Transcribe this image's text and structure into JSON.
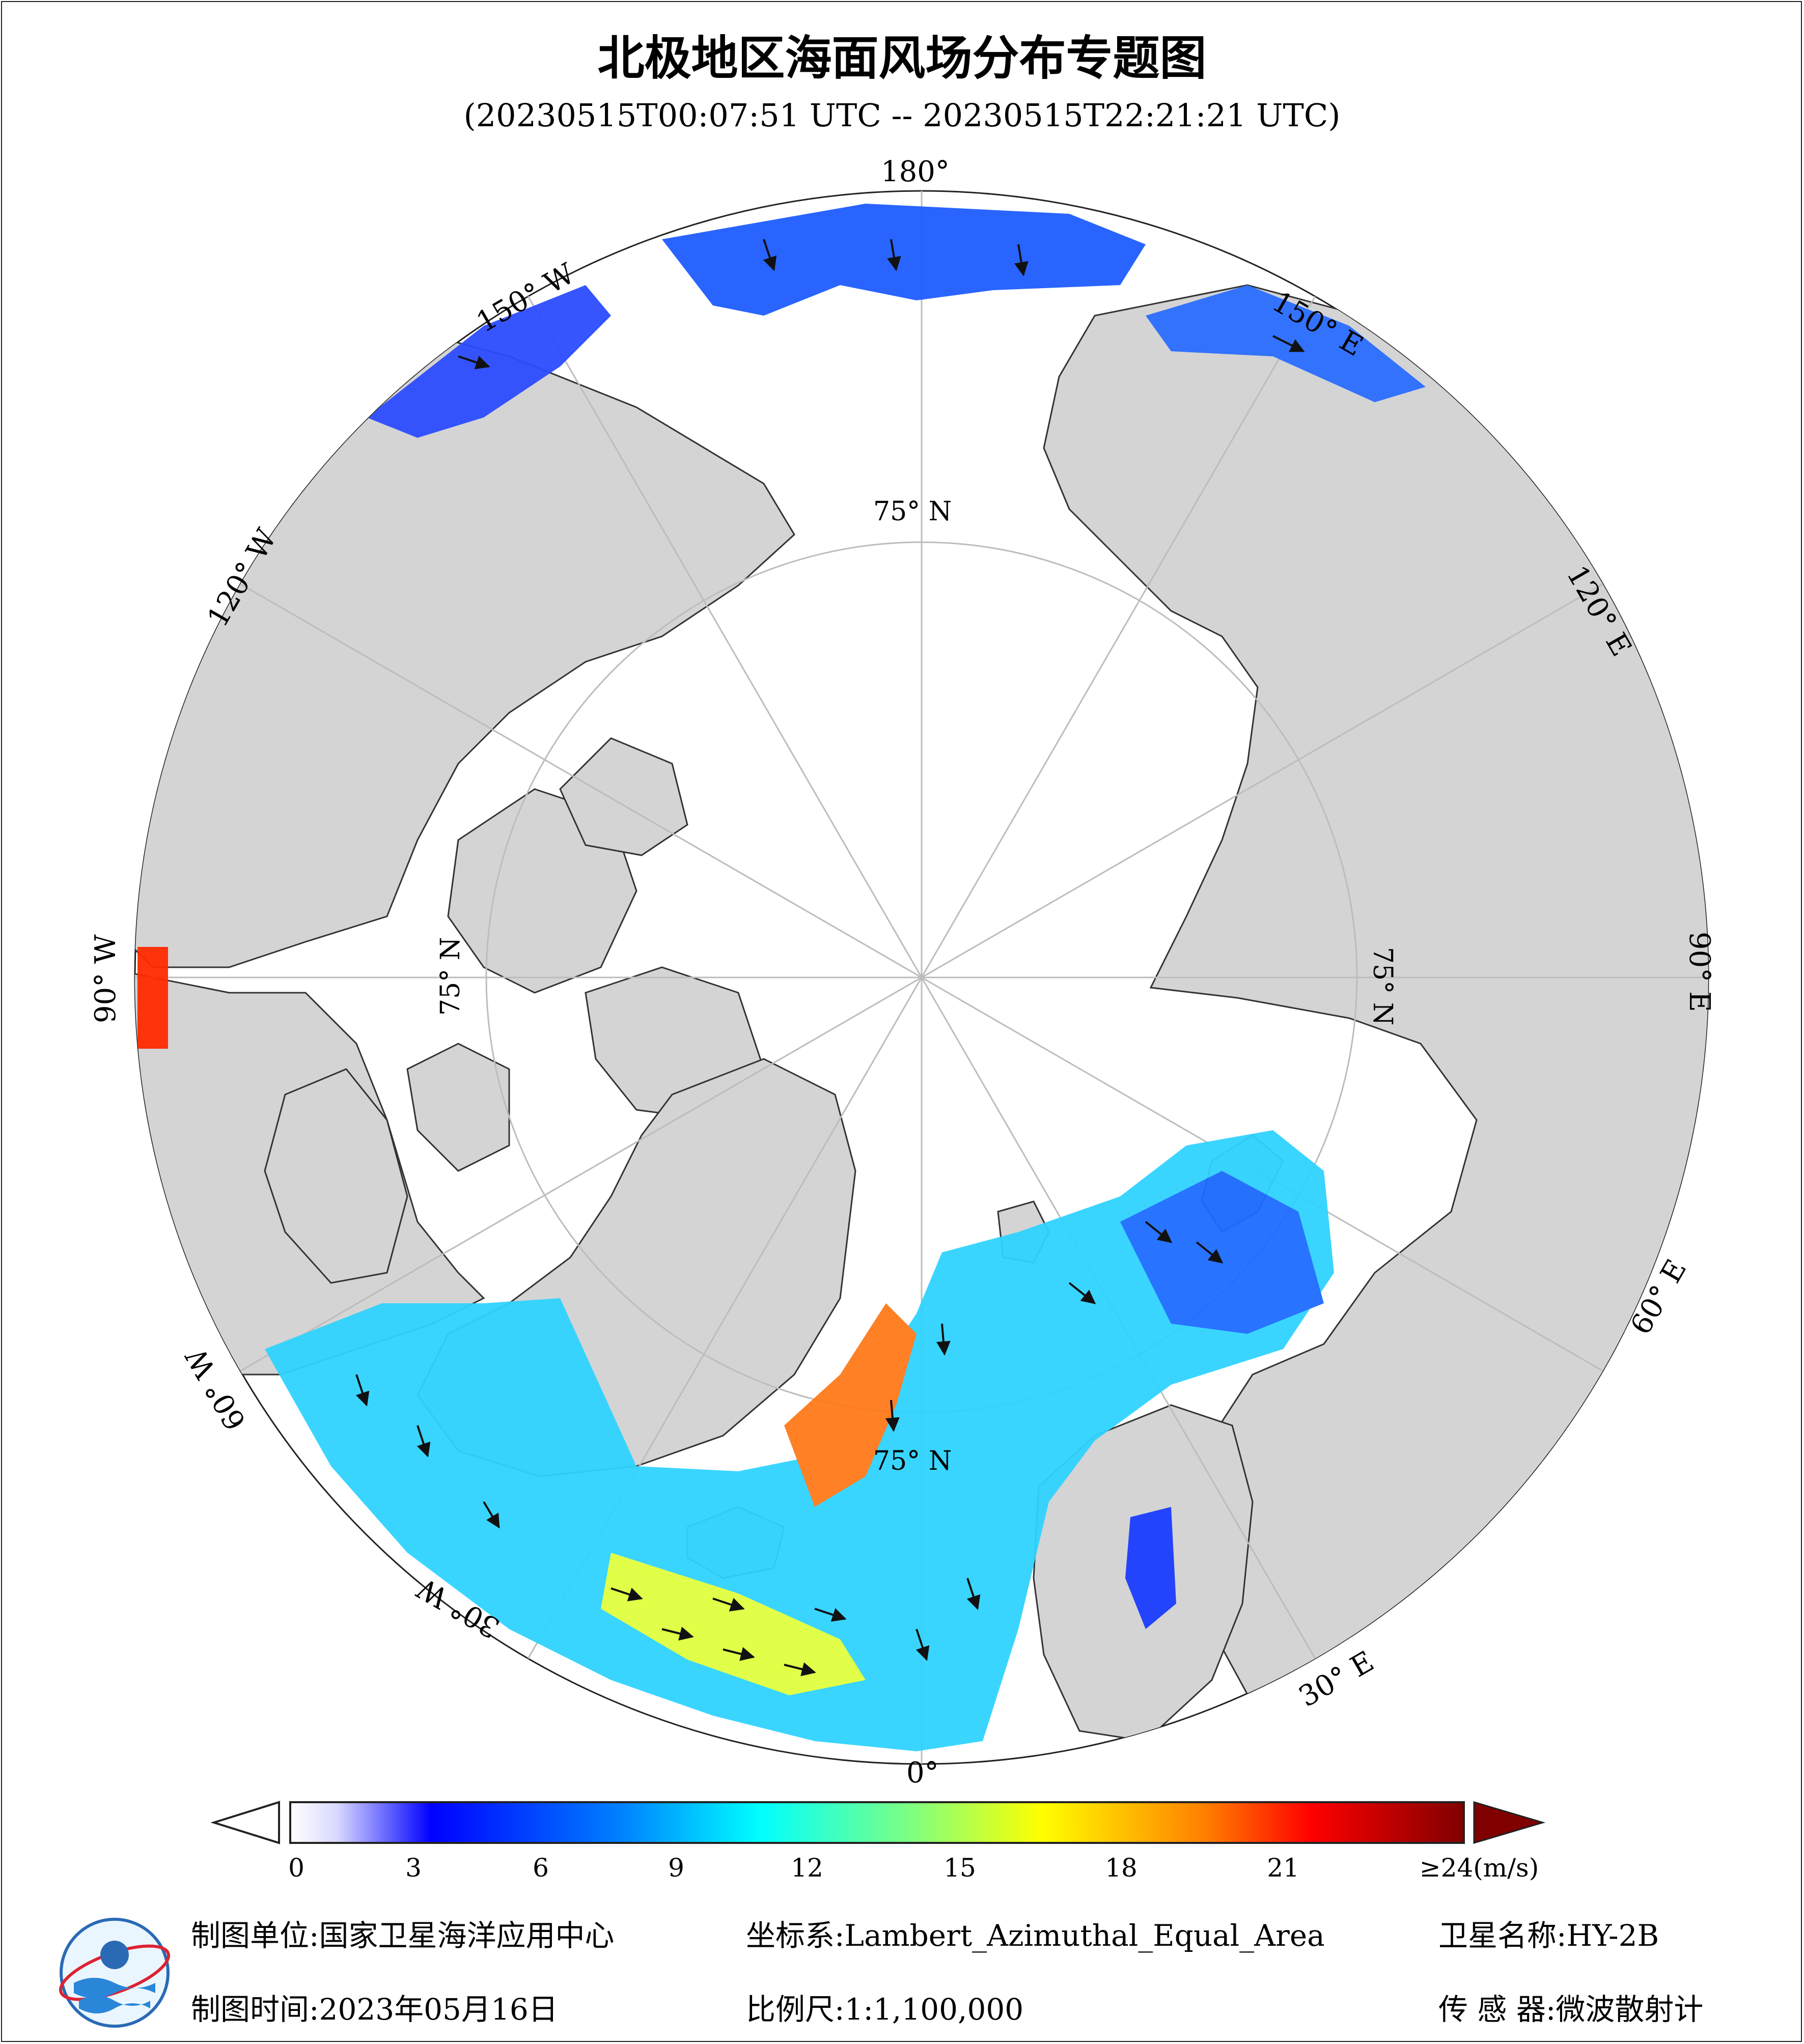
{
  "title": "北极地区海面风场分布专题图",
  "subtitle": "(20230515T00:07:51 UTC -- 20230515T22:21:21 UTC)",
  "map": {
    "projection_label": "Lambert_Azimuthal_Equal_Area",
    "longitude_labels": [
      "180°",
      "150° E",
      "120° E",
      "90° E",
      "60° E",
      "30° E",
      "0°",
      "30° W",
      "60° W",
      "90° W",
      "120° W",
      "150° W"
    ],
    "latitude_labels": [
      "75° N",
      "75° N",
      "75° N",
      "75° N"
    ],
    "colors": {
      "land": "#d4d4d4",
      "sea_ice": "#ffffff",
      "graticule": "#bdbdbd"
    }
  },
  "colorbar": {
    "tick_labels": [
      "0",
      "3",
      "6",
      "9",
      "12",
      "15",
      "18",
      "21",
      "≥24(m/s)"
    ],
    "tick_values": [
      0,
      3,
      6,
      9,
      12,
      15,
      18,
      21,
      24
    ],
    "unit": "m/s",
    "min": 0,
    "max": 24,
    "colors": [
      "#ffffff",
      "#0000ff",
      "#00ffff",
      "#ffff00",
      "#ff0000",
      "#800000"
    ]
  },
  "footer": {
    "unit_label": "制图单位:",
    "unit_value": "国家卫星海洋应用中心",
    "coord_label": "坐标系:",
    "coord_value": "Lambert_Azimuthal_Equal_Area",
    "satellite_label": "卫星名称:",
    "satellite_value": "HY-2B",
    "date_label": "制图时间:",
    "date_value": "2023年05月16日",
    "scale_label": "比例尺:",
    "scale_value": "1:1,100,000",
    "sensor_label": "传 感 器:",
    "sensor_value": "微波散射计"
  }
}
